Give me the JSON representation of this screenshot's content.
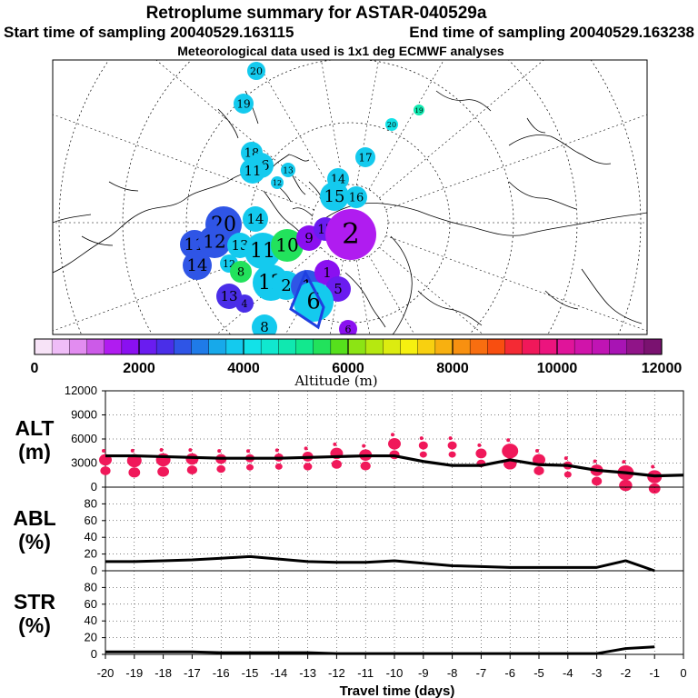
{
  "header": {
    "title": "Retroplume summary for ASTAR-040529a",
    "start_label": "Start time of sampling 20040529.163115",
    "end_label": "End time of sampling 20040529.163238",
    "met_label": "Meteorological data used is 1x1 deg ECMWF analyses"
  },
  "colorbar": {
    "ticks": [
      "0",
      "2000",
      "4000",
      "6000",
      "8000",
      "10000",
      "12000"
    ],
    "label": "Altitude (m)",
    "colors": [
      "#f7e3f7",
      "#efbdf7",
      "#e28cf0",
      "#cc5ae8",
      "#b01cf0",
      "#8a10f0",
      "#6a1cf0",
      "#4a2ee8",
      "#2f55e6",
      "#1f7be8",
      "#17a9ea",
      "#14caee",
      "#12e2e8",
      "#10e8cf",
      "#10e8b0",
      "#12e88e",
      "#22e25c",
      "#56e01c",
      "#8ce414",
      "#b6e810",
      "#dcec10",
      "#f6f010",
      "#f8d010",
      "#f8b010",
      "#f89010",
      "#f86e10",
      "#f84e10",
      "#f42a34",
      "#f0185a",
      "#ec147e",
      "#e0149a",
      "#d014aa",
      "#c014b4",
      "#a814b4",
      "#901488",
      "#7a1270"
    ]
  },
  "map": {
    "blobs": [
      {
        "label": "20",
        "color": "#14caee",
        "r": 10
      },
      {
        "label": "19",
        "color": "#14caee",
        "r": 11
      },
      {
        "label": "18",
        "color": "#14caee",
        "r": 12
      },
      {
        "label": "16",
        "color": "#14caee",
        "r": 14
      },
      {
        "label": "17",
        "color": "#14caee",
        "r": 11
      },
      {
        "label": "19",
        "color": "#10e8b0",
        "r": 6
      },
      {
        "label": "20",
        "color": "#12e2e8",
        "r": 7
      },
      {
        "label": "11",
        "color": "#14caee",
        "r": 14
      },
      {
        "label": "13",
        "color": "#14caee",
        "r": 8
      },
      {
        "label": "12",
        "color": "#14caee",
        "r": 7
      },
      {
        "label": "14",
        "color": "#14caee",
        "r": 12
      },
      {
        "label": "15",
        "color": "#14caee",
        "r": 16
      },
      {
        "label": "16",
        "color": "#14caee",
        "r": 12
      },
      {
        "label": "13",
        "color": "#2f55e6",
        "r": 10
      },
      {
        "label": "20",
        "color": "#2f55e6",
        "r": 20
      },
      {
        "label": "14",
        "color": "#14caee",
        "r": 14
      },
      {
        "label": "11",
        "color": "#2f55e6",
        "r": 16
      },
      {
        "label": "12",
        "color": "#2f55e6",
        "r": 18
      },
      {
        "label": "13",
        "color": "#14caee",
        "r": 14
      },
      {
        "label": "11",
        "color": "#14caee",
        "r": 20
      },
      {
        "label": "10",
        "color": "#22e25c",
        "r": 18
      },
      {
        "label": "9",
        "color": "#8a10f0",
        "r": 14
      },
      {
        "label": "17",
        "color": "#6a1cf0",
        "r": 13
      },
      {
        "label": "10",
        "color": "#b01cf0",
        "r": 10
      },
      {
        "label": "2",
        "color": "#b01cf0",
        "r": 28
      },
      {
        "label": "14",
        "color": "#2f55e6",
        "r": 16
      },
      {
        "label": "12",
        "color": "#14caee",
        "r": 10
      },
      {
        "label": "8",
        "color": "#22e25c",
        "r": 12
      },
      {
        "label": "12",
        "color": "#14caee",
        "r": 20
      },
      {
        "label": "2",
        "color": "#14caee",
        "r": 16
      },
      {
        "label": "1",
        "color": "#2f55e6",
        "r": 18
      },
      {
        "label": "1",
        "color": "#8a10f0",
        "r": 14
      },
      {
        "label": "5",
        "color": "#6a1cf0",
        "r": 14
      },
      {
        "label": "13",
        "color": "#4a2ee8",
        "r": 14
      },
      {
        "label": "4",
        "color": "#4a2ee8",
        "r": 10
      },
      {
        "label": "6",
        "color": "#14caee",
        "r": 22
      },
      {
        "label": "8",
        "color": "#14caee",
        "r": 14
      },
      {
        "label": "6",
        "color": "#8a10f0",
        "r": 10
      }
    ]
  },
  "chart_data": [
    {
      "type": "scatter",
      "title": "ALT (m)",
      "ylabel_line1": "ALT",
      "ylabel_line2": "(m)",
      "xlabel": "Travel time (days)",
      "ylim": [
        0,
        12000
      ],
      "yticks": [
        "12000",
        "9000",
        "6000",
        "3000",
        "0"
      ],
      "x_ticks": [
        "-20",
        "-19",
        "-18",
        "-17",
        "-16",
        "-15",
        "-14",
        "-13",
        "-12",
        "-11",
        "-10",
        "-9",
        "-8",
        "-7",
        "-6",
        "-5",
        "-4",
        "-3",
        "-2",
        "-1",
        "0"
      ],
      "line": {
        "x": [
          -20,
          -19,
          -18,
          -17,
          -16,
          -15,
          -14,
          -13,
          -12,
          -11,
          -10,
          -9,
          -8,
          -7,
          -6,
          -5,
          -4,
          -3,
          -2,
          -1,
          0
        ],
        "y": [
          3900,
          3900,
          3800,
          3700,
          3600,
          3600,
          3600,
          3700,
          3800,
          3900,
          3900,
          3200,
          2700,
          2700,
          3400,
          2800,
          2700,
          2100,
          1800,
          1400,
          1500
        ]
      },
      "clusters": [
        {
          "x": -20,
          "y": 3400,
          "size": 7
        },
        {
          "x": -19,
          "y": 3300,
          "size": 8
        },
        {
          "x": -18,
          "y": 3400,
          "size": 8
        },
        {
          "x": -17,
          "y": 3500,
          "size": 7
        },
        {
          "x": -16,
          "y": 3500,
          "size": 6
        },
        {
          "x": -15,
          "y": 3600,
          "size": 5
        },
        {
          "x": -14,
          "y": 3700,
          "size": 5
        },
        {
          "x": -13,
          "y": 3800,
          "size": 6
        },
        {
          "x": -12,
          "y": 4200,
          "size": 7
        },
        {
          "x": -11,
          "y": 4000,
          "size": 7
        },
        {
          "x": -10,
          "y": 5400,
          "size": 7
        },
        {
          "x": -9,
          "y": 5200,
          "size": 5
        },
        {
          "x": -8,
          "y": 5200,
          "size": 5
        },
        {
          "x": -7,
          "y": 4200,
          "size": 6
        },
        {
          "x": -6,
          "y": 4500,
          "size": 9
        },
        {
          "x": -5,
          "y": 3400,
          "size": 7
        },
        {
          "x": -4,
          "y": 2700,
          "size": 5
        },
        {
          "x": -3,
          "y": 2100,
          "size": 7
        },
        {
          "x": -2,
          "y": 1800,
          "size": 9
        },
        {
          "x": -1,
          "y": 1300,
          "size": 8
        }
      ]
    },
    {
      "type": "line",
      "title": "ABL (%)",
      "ylabel_line1": "ABL",
      "ylabel_line2": "(%)",
      "ylim": [
        0,
        100
      ],
      "yticks": [
        "80",
        "60",
        "40",
        "20",
        "0"
      ],
      "x": [
        -20,
        -19,
        -18,
        -17,
        -16,
        -15,
        -14,
        -13,
        -12,
        -11,
        -10,
        -9,
        -8,
        -7,
        -6,
        -5,
        -4,
        -3,
        -2,
        -1
      ],
      "y": [
        11,
        11,
        12,
        13,
        15,
        17,
        14,
        11,
        10,
        10,
        12,
        9,
        6,
        5,
        4,
        4,
        4,
        4,
        12,
        0
      ]
    },
    {
      "type": "line",
      "title": "STR (%)",
      "ylabel_line1": "STR",
      "ylabel_line2": "(%)",
      "ylim": [
        0,
        100
      ],
      "yticks": [
        "80",
        "60",
        "40",
        "20",
        "0"
      ],
      "x": [
        -20,
        -19,
        -18,
        -17,
        -16,
        -15,
        -14,
        -13,
        -12,
        -11,
        -10,
        -9,
        -8,
        -7,
        -6,
        -5,
        -4,
        -3,
        -2,
        -1
      ],
      "y": [
        3,
        3,
        3,
        3,
        2,
        2,
        2,
        2,
        1,
        1,
        1,
        1,
        1,
        1,
        1,
        1,
        1,
        1,
        7,
        9
      ]
    }
  ]
}
